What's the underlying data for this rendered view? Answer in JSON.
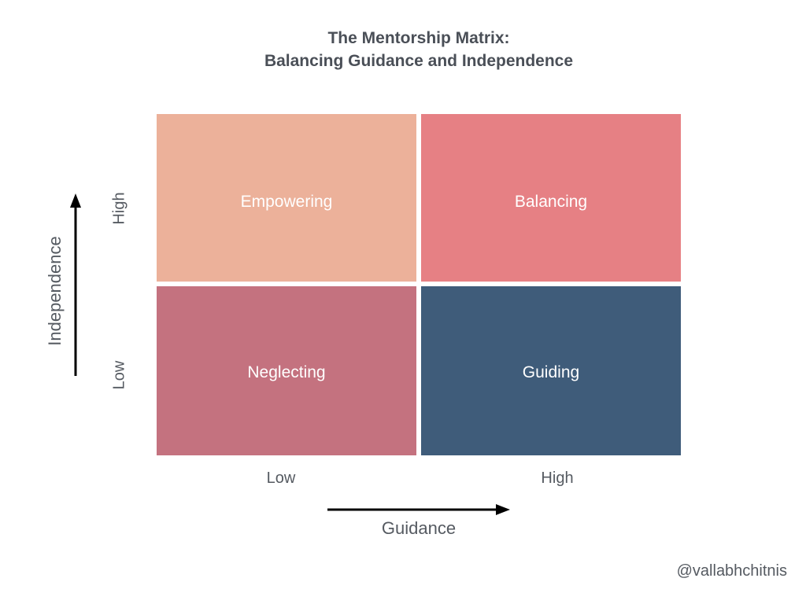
{
  "title": {
    "line1": "The Mentorship Matrix:",
    "line2": "Balancing Guidance and Independence"
  },
  "quadrants": {
    "top_left": {
      "label": "Empowering",
      "color": "#ecb19a"
    },
    "top_right": {
      "label": "Balancing",
      "color": "#e68084"
    },
    "bottom_left": {
      "label": "Neglecting",
      "color": "#c4727f"
    },
    "bottom_right": {
      "label": "Guiding",
      "color": "#3f5c7a"
    }
  },
  "x_axis": {
    "title": "Guidance",
    "low_label": "Low",
    "high_label": "High"
  },
  "y_axis": {
    "title": "Independence",
    "low_label": "Low",
    "high_label": "High"
  },
  "credit": "@vallabhchitnis"
}
